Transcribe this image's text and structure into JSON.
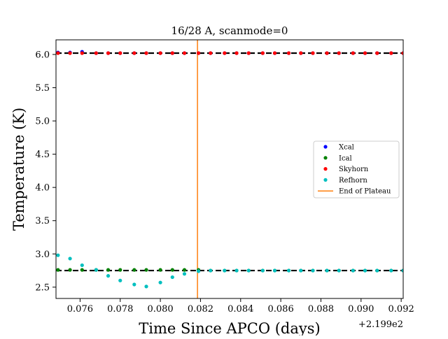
{
  "chart_data": {
    "type": "scatter",
    "title": "16/28 A, scanmode=0",
    "xlabel": "Time Since APCO (days)",
    "ylabel": "Temperature (K)",
    "x_offset_text": "+2.199e2",
    "xlim": [
      0.0748,
      0.0921
    ],
    "ylim": [
      2.33,
      6.22
    ],
    "x_ticks": [
      0.076,
      0.078,
      0.08,
      0.082,
      0.084,
      0.086,
      0.088,
      0.09,
      0.092
    ],
    "x_tick_labels": [
      "0.076",
      "0.078",
      "0.080",
      "0.082",
      "0.084",
      "0.086",
      "0.088",
      "0.090",
      "0.092"
    ],
    "y_ticks": [
      2.5,
      3.0,
      3.5,
      4.0,
      4.5,
      5.0,
      5.5,
      6.0
    ],
    "y_tick_labels": [
      "2.5",
      "3.0",
      "3.5",
      "4.0",
      "4.5",
      "5.0",
      "5.5",
      "6.0"
    ],
    "reference_lines": [
      6.02,
      2.75
    ],
    "plateau_end_x": 0.08185,
    "grid": false,
    "legend_position": "center-right",
    "legend": [
      {
        "label": "Xcal",
        "kind": "marker",
        "color": "#0000ff"
      },
      {
        "label": "Ical",
        "kind": "marker",
        "color": "#008000"
      },
      {
        "label": "Skyhorn",
        "kind": "marker",
        "color": "#ff0000"
      },
      {
        "label": "Refhorn",
        "kind": "marker",
        "color": "#00bfbf"
      },
      {
        "label": "End of Plateau",
        "kind": "line",
        "color": "#ff7f0e"
      }
    ],
    "series": [
      {
        "name": "Xcal",
        "color": "#0000ff",
        "x": [
          0.0749,
          0.0755,
          0.0761,
          0.0768,
          0.0774,
          0.078,
          0.0787,
          0.0793,
          0.08,
          0.0806,
          0.0812,
          0.0819,
          0.0825,
          0.0832,
          0.0838,
          0.0844,
          0.0851,
          0.0857,
          0.0864,
          0.087,
          0.0876,
          0.0883,
          0.0889,
          0.0896,
          0.0902,
          0.0908,
          0.0915,
          0.0921
        ],
        "y": [
          6.03,
          6.03,
          6.04,
          6.02,
          6.02,
          6.02,
          6.02,
          6.02,
          6.02,
          6.02,
          6.02,
          6.02,
          6.02,
          6.02,
          6.02,
          6.02,
          6.02,
          6.02,
          6.02,
          6.02,
          6.02,
          6.02,
          6.02,
          6.02,
          6.02,
          6.02,
          6.02,
          6.02
        ]
      },
      {
        "name": "Ical",
        "color": "#008000",
        "x": [
          0.0749,
          0.0755,
          0.0761,
          0.0768,
          0.0774,
          0.078,
          0.0787,
          0.0793,
          0.08,
          0.0806,
          0.0812,
          0.0819,
          0.0825,
          0.0832,
          0.0838,
          0.0844,
          0.0851,
          0.0857,
          0.0864,
          0.087,
          0.0876,
          0.0883,
          0.0889,
          0.0896,
          0.0902,
          0.0908,
          0.0915,
          0.0921
        ],
        "y": [
          2.76,
          2.76,
          2.76,
          2.76,
          2.76,
          2.76,
          2.76,
          2.76,
          2.76,
          2.76,
          2.76,
          2.76,
          2.75,
          2.75,
          2.75,
          2.75,
          2.75,
          2.75,
          2.75,
          2.75,
          2.75,
          2.75,
          2.75,
          2.75,
          2.75,
          2.75,
          2.75,
          2.75
        ]
      },
      {
        "name": "Skyhorn",
        "color": "#ff0000",
        "x": [
          0.0749,
          0.0755,
          0.0761,
          0.0768,
          0.0774,
          0.078,
          0.0787,
          0.0793,
          0.08,
          0.0806,
          0.0812,
          0.0819,
          0.0825,
          0.0832,
          0.0838,
          0.0844,
          0.0851,
          0.0857,
          0.0864,
          0.087,
          0.0876,
          0.0883,
          0.0889,
          0.0896,
          0.0902,
          0.0908,
          0.0915,
          0.0921
        ],
        "y": [
          6.02,
          6.02,
          6.02,
          6.02,
          6.02,
          6.02,
          6.02,
          6.02,
          6.02,
          6.02,
          6.02,
          6.02,
          6.02,
          6.02,
          6.02,
          6.02,
          6.02,
          6.02,
          6.02,
          6.02,
          6.02,
          6.02,
          6.02,
          6.02,
          6.02,
          6.02,
          6.02,
          6.02
        ]
      },
      {
        "name": "Refhorn",
        "color": "#00bfbf",
        "x": [
          0.0749,
          0.0755,
          0.0761,
          0.0768,
          0.0774,
          0.078,
          0.0787,
          0.0793,
          0.08,
          0.0806,
          0.0812,
          0.0819,
          0.0825,
          0.0832,
          0.0838,
          0.0844,
          0.0851,
          0.0857,
          0.0864,
          0.087,
          0.0876,
          0.0883,
          0.0889,
          0.0896,
          0.0902,
          0.0908,
          0.0915,
          0.0921
        ],
        "y": [
          2.98,
          2.93,
          2.83,
          2.76,
          2.67,
          2.6,
          2.54,
          2.51,
          2.57,
          2.65,
          2.7,
          2.74,
          2.75,
          2.75,
          2.75,
          2.75,
          2.75,
          2.75,
          2.75,
          2.75,
          2.75,
          2.75,
          2.75,
          2.75,
          2.75,
          2.75,
          2.75,
          2.75
        ]
      }
    ]
  }
}
